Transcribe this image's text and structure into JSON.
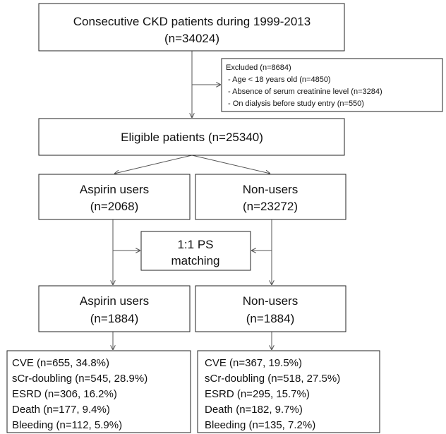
{
  "nodes": [
    {
      "lines": [
        "Consecutive CKD patients during 1999-2013",
        "(n=34024)"
      ]
    },
    {
      "lines": [
        "Excluded (n=8684)",
        " - Age < 18 years old (n=4850)",
        " - Absence of serum creatinine level (n=3284)",
        " - On dialysis before study entry (n=550)"
      ]
    },
    {
      "lines": [
        "Eligible patients (n=25340)"
      ]
    },
    {
      "lines": [
        "Aspirin users",
        "(n=2068)"
      ]
    },
    {
      "lines": [
        "Non-users",
        "(n=23272)"
      ]
    },
    {
      "lines": [
        "1:1 PS",
        "matching"
      ]
    },
    {
      "lines": [
        "Aspirin users",
        "(n=1884)"
      ]
    },
    {
      "lines": [
        "Non-users",
        "(n=1884)"
      ]
    },
    {
      "lines": [
        "CVE (n=655, 34.8%)",
        "sCr-doubling (n=545, 28.9%)",
        "ESRD (n=306, 16.2%)",
        "Death (n=177, 9.4%)",
        "Bleeding (n=112, 5.9%)"
      ]
    },
    {
      "lines": [
        "CVE (n=367, 19.5%)",
        "sCr-doubling (n=518, 27.5%)",
        "ESRD (n=295, 15.7%)",
        "Death (n=182, 9.7%)",
        "Bleeding (n=135, 7.2%)"
      ]
    }
  ]
}
